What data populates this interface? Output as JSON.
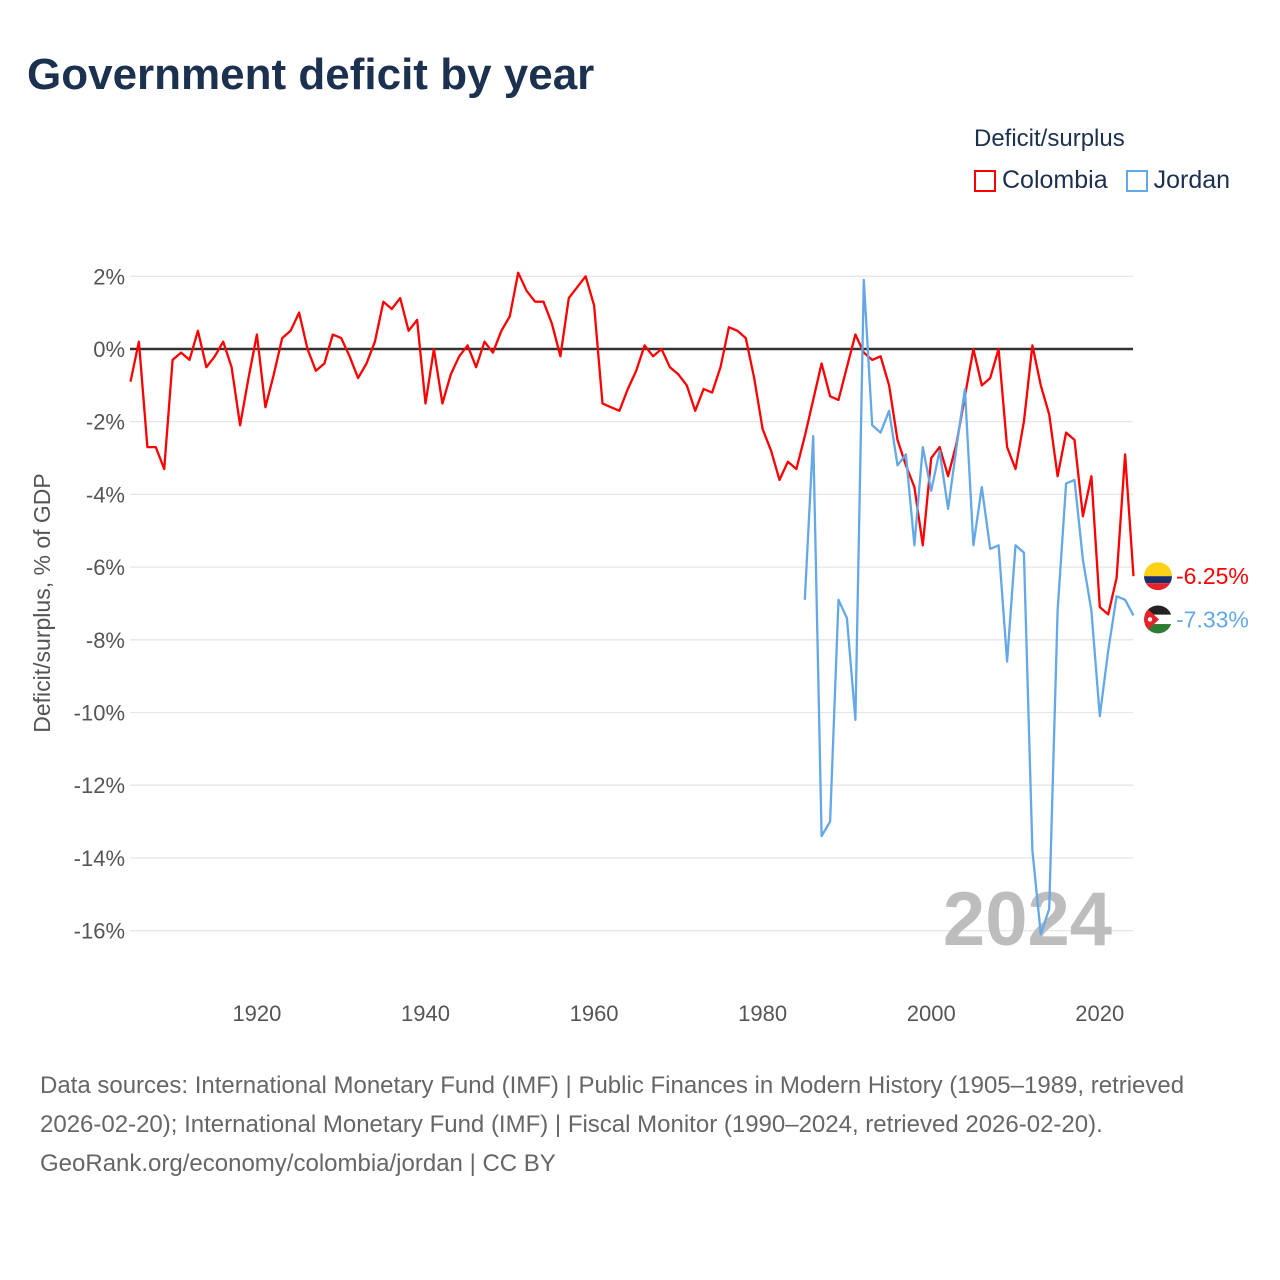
{
  "title": "Government deficit by year",
  "legend": {
    "title": "Deficit/surplus",
    "items": [
      {
        "name": "Colombia",
        "color": "#ff0000"
      },
      {
        "name": "Jordan",
        "color": "#64a8e8"
      }
    ]
  },
  "chart_data": {
    "type": "line",
    "title": "Government deficit by year",
    "ylabel": "Deficit/surplus, % of GDP",
    "xlabel": "",
    "xlim": [
      1905,
      2024
    ],
    "ylim": [
      -17,
      2.5
    ],
    "yticks": [
      2,
      0,
      -2,
      -4,
      -6,
      -8,
      -10,
      -12,
      -14,
      -16
    ],
    "ytick_labels": [
      "2%",
      "0%",
      "-2%",
      "-4%",
      "-6%",
      "-8%",
      "-10%",
      "-12%",
      "-14%",
      "-16%"
    ],
    "xticks": [
      1920,
      1940,
      1960,
      1980,
      2000,
      2020
    ],
    "xtick_labels": [
      "1920",
      "1940",
      "1960",
      "1980",
      "2000",
      "2020"
    ],
    "watermark_year": "2024",
    "grid": true,
    "legend_placement": "top-right",
    "series": [
      {
        "name": "Colombia",
        "color": "#ff0000",
        "start_year": 1905,
        "end_label": "-6.25%",
        "values": [
          -0.9,
          0.2,
          -2.7,
          -2.7,
          -3.3,
          -0.3,
          -0.1,
          -0.3,
          0.5,
          -0.5,
          -0.2,
          0.2,
          -0.5,
          -2.1,
          -0.8,
          0.4,
          -1.6,
          -0.7,
          0.3,
          0.5,
          1.0,
          0.0,
          -0.6,
          -0.4,
          0.4,
          0.3,
          -0.2,
          -0.8,
          -0.4,
          0.2,
          1.3,
          1.1,
          1.4,
          0.5,
          0.8,
          -1.5,
          0.0,
          -1.5,
          -0.7,
          -0.2,
          0.1,
          -0.5,
          0.2,
          -0.1,
          0.5,
          0.9,
          2.1,
          1.6,
          1.3,
          1.3,
          0.7,
          -0.2,
          1.4,
          1.7,
          2.0,
          1.2,
          -1.5,
          -1.6,
          -1.7,
          -1.1,
          -0.6,
          0.1,
          -0.2,
          0.0,
          -0.5,
          -0.7,
          -1.0,
          -1.7,
          -1.1,
          -1.2,
          -0.5,
          0.6,
          0.5,
          0.3,
          -0.8,
          -2.2,
          -2.8,
          -3.6,
          -3.1,
          -3.3,
          -2.4,
          -1.4,
          -0.4,
          -1.3,
          -1.4,
          -0.5,
          0.4,
          -0.1,
          -0.3,
          -0.2,
          -1.0,
          -2.5,
          -3.2,
          -3.8,
          -5.4,
          -3.0,
          -2.7,
          -3.5,
          -2.6,
          -1.3,
          0.0,
          -1.0,
          -0.8,
          0.0,
          -2.7,
          -3.3,
          -2.0,
          0.1,
          -1.0,
          -1.8,
          -3.5,
          -2.3,
          -2.5,
          -4.6,
          -3.5,
          -7.1,
          -7.3,
          -6.3,
          -2.9,
          -6.25
        ]
      },
      {
        "name": "Jordan",
        "color": "#64a8e8",
        "start_year": 1985,
        "end_label": "-7.33%",
        "values": [
          -6.9,
          -2.4,
          -13.4,
          -13.0,
          -6.9,
          -7.4,
          -10.2,
          1.9,
          -2.1,
          -2.3,
          -1.7,
          -3.2,
          -2.9,
          -5.4,
          -2.7,
          -3.9,
          -2.8,
          -4.4,
          -2.7,
          -1.1,
          -5.4,
          -3.8,
          -5.5,
          -5.4,
          -8.6,
          -5.4,
          -5.6,
          -13.8,
          -16.1,
          -15.4,
          -7.2,
          -3.7,
          -3.6,
          -5.8,
          -7.2,
          -10.1,
          -8.3,
          -6.8,
          -6.9,
          -7.33
        ]
      }
    ]
  },
  "footer": {
    "sources": "Data sources: International Monetary Fund (IMF) | Public Finances in Modern History (1905–1989, retrieved 2026-02-20); International Monetary Fund (IMF) | Fiscal Monitor (1990–2024, retrieved 2026-02-20).",
    "credit": "GeoRank.org/economy/colombia/jordan | CC BY"
  }
}
